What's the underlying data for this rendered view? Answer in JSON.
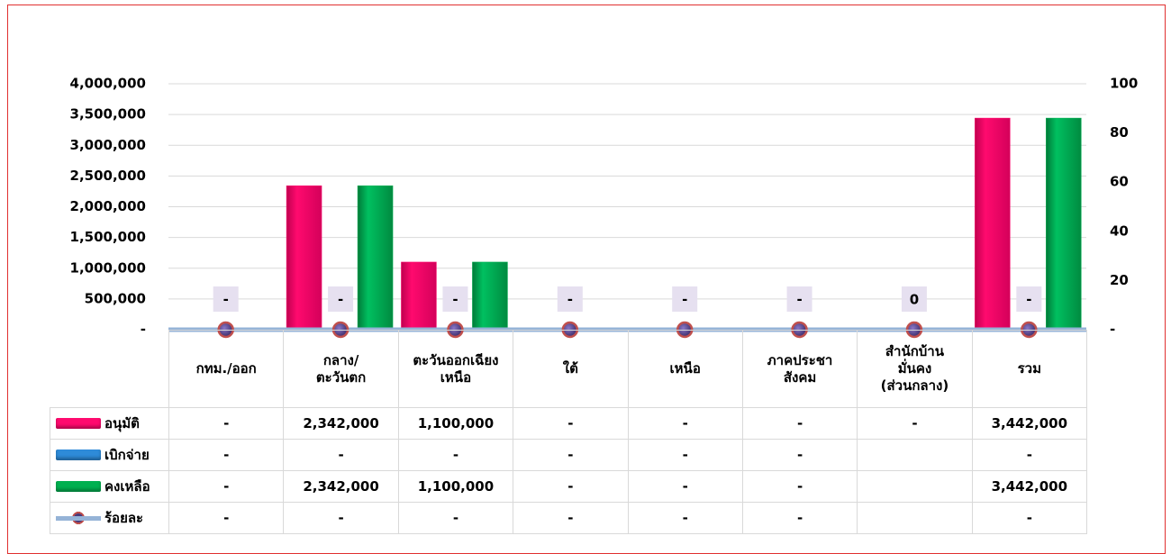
{
  "chart_data": {
    "type": "bar",
    "categories": [
      "กทม./ออก",
      "กลาง/\nตะวันตก",
      "ตะวันออกเฉียง\nเหนือ",
      "ใต้",
      "เหนือ",
      "ภาคประชา\nสังคม",
      "สำนักบ้าน\nมั่นคง\n(ส่วนกลาง)",
      "รวม"
    ],
    "series": [
      {
        "name": "อนุมัติ",
        "color": "#ff0a6e",
        "values": [
          0,
          2342000,
          1100000,
          0,
          0,
          0,
          0,
          3442000
        ],
        "value_labels": [
          "-",
          "2,342,000",
          "1,100,000",
          "-",
          "-",
          "-",
          "-",
          "3,442,000"
        ]
      },
      {
        "name": "เบิกจ่าย",
        "color": "#2e8bd8",
        "values": [
          0,
          0,
          0,
          0,
          0,
          0,
          null,
          0
        ],
        "value_labels": [
          "-",
          "-",
          "-",
          "-",
          "-",
          "-",
          null,
          "-"
        ]
      },
      {
        "name": "คงเหลือ",
        "color": "#00b050",
        "values": [
          0,
          2342000,
          1100000,
          0,
          0,
          0,
          null,
          3442000
        ],
        "value_labels": [
          "-",
          "2,342,000",
          "1,100,000",
          "-",
          "-",
          "-",
          null,
          "3,442,000"
        ]
      },
      {
        "name": "ร้อยละ",
        "type": "line",
        "axis": "y2",
        "color": "#95b3d7",
        "marker_color": "#c0504d",
        "values": [
          0,
          0,
          0,
          0,
          0,
          0,
          0,
          0
        ],
        "value_labels": [
          "-",
          "-",
          "-",
          "-",
          "-",
          "-",
          "0",
          "-"
        ],
        "table_labels": [
          "-",
          "-",
          "-",
          "-",
          "-",
          "-",
          null,
          "-"
        ]
      }
    ],
    "ylim": [
      0,
      4000000
    ],
    "yticks": [
      {
        "value": 0,
        "label": "-"
      },
      {
        "value": 500000,
        "label": "500,000"
      },
      {
        "value": 1000000,
        "label": "1,000,000"
      },
      {
        "value": 1500000,
        "label": "1,500,000"
      },
      {
        "value": 2000000,
        "label": "2,000,000"
      },
      {
        "value": 2500000,
        "label": "2,500,000"
      },
      {
        "value": 3000000,
        "label": "3,000,000"
      },
      {
        "value": 3500000,
        "label": "3,500,000"
      },
      {
        "value": 4000000,
        "label": "4,000,000"
      }
    ],
    "y2lim": [
      0,
      100
    ],
    "y2ticks": [
      {
        "value": 0,
        "label": "-"
      },
      20,
      40,
      60,
      80,
      100
    ],
    "grid": true
  }
}
